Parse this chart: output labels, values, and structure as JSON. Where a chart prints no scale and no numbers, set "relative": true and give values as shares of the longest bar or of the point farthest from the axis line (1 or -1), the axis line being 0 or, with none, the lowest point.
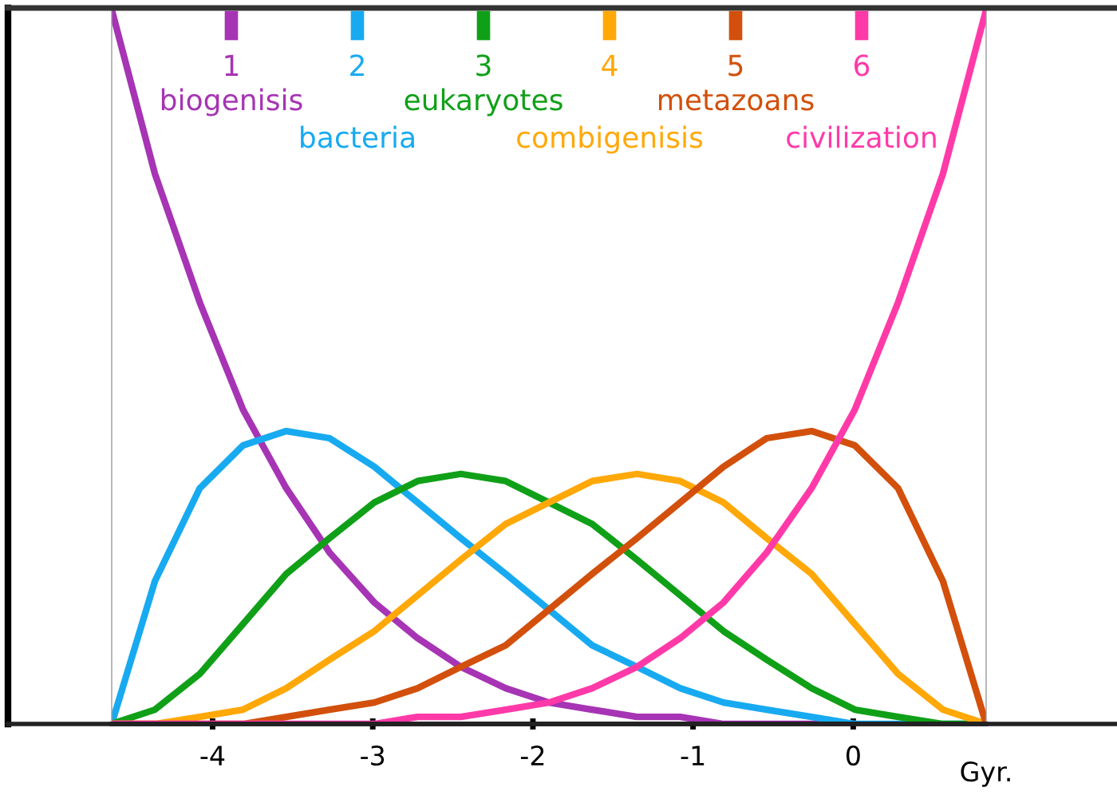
{
  "chart_data": {
    "type": "line",
    "relative": true,
    "xlabel": "Gyr.",
    "x": [
      -4.63,
      -4.36,
      -4.08,
      -3.81,
      -3.54,
      -3.27,
      -2.99,
      -2.72,
      -2.45,
      -2.17,
      -1.9,
      -1.63,
      -1.35,
      -1.08,
      -0.81,
      -0.54,
      -0.26,
      0.01,
      0.28,
      0.56,
      0.83
    ],
    "xlim": [
      -4.63,
      0.83
    ],
    "xticks": [
      {
        "value": -4,
        "label": "-4"
      },
      {
        "value": -3,
        "label": "-3"
      },
      {
        "value": -2,
        "label": "-2"
      },
      {
        "value": -1,
        "label": "-1"
      },
      {
        "value": 0,
        "label": "0"
      }
    ],
    "annotations": [
      "1",
      "2",
      "3",
      "4",
      "5",
      "6"
    ],
    "grid": false,
    "legend": "top",
    "marker": "none",
    "line_style": "solid",
    "series": [
      {
        "name": "biogenisis",
        "color": "#a634b4",
        "values": [
          1,
          0.77,
          0.59,
          0.44,
          0.33,
          0.24,
          0.17,
          0.12,
          0.08,
          0.05,
          0.03,
          0.02,
          0.01,
          0.01,
          0,
          0,
          0,
          0,
          null,
          null,
          null
        ]
      },
      {
        "name": "bacteria",
        "color": "#18aaf0",
        "values": [
          0,
          0.2,
          0.33,
          0.39,
          0.41,
          0.4,
          0.36,
          0.31,
          0.26,
          0.21,
          0.16,
          0.11,
          0.08,
          0.05,
          0.03,
          0.02,
          0.01,
          0,
          0,
          0,
          0
        ]
      },
      {
        "name": "eukaryotes",
        "color": "#10a018",
        "values": [
          0,
          0.02,
          0.07,
          0.14,
          0.21,
          0.26,
          0.31,
          0.34,
          0.35,
          0.34,
          0.31,
          0.28,
          0.23,
          0.18,
          0.13,
          0.09,
          0.05,
          0.02,
          0.01,
          0,
          0
        ]
      },
      {
        "name": "combigenisis",
        "color": "#ffa808",
        "values": [
          0,
          0,
          0.01,
          0.02,
          0.05,
          0.09,
          0.13,
          0.18,
          0.23,
          0.28,
          0.31,
          0.34,
          0.35,
          0.34,
          0.31,
          0.26,
          0.21,
          0.14,
          0.07,
          0.02,
          0
        ]
      },
      {
        "name": "metazoans",
        "color": "#d2500c",
        "values": [
          0,
          0,
          0,
          0,
          0.01,
          0.02,
          0.03,
          0.05,
          0.08,
          0.11,
          0.16,
          0.21,
          0.26,
          0.31,
          0.36,
          0.4,
          0.41,
          0.39,
          0.33,
          0.2,
          0
        ]
      },
      {
        "name": "civilization",
        "color": "#ff3aa8",
        "values": [
          0,
          0,
          0,
          0,
          0,
          0,
          0,
          0.01,
          0.01,
          0.02,
          0.03,
          0.05,
          0.08,
          0.12,
          0.17,
          0.24,
          0.33,
          0.44,
          0.59,
          0.77,
          1
        ]
      }
    ]
  }
}
